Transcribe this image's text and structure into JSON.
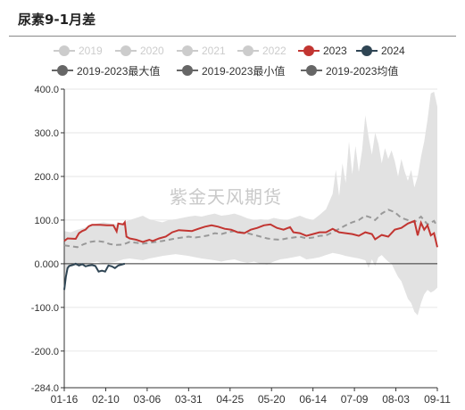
{
  "header": {
    "title": "尿素9-1月差"
  },
  "watermark": "紫金天风期货",
  "chart_data": {
    "type": "line",
    "title": "尿素9-1月差",
    "ylim": [
      -284,
      400
    ],
    "y_ticks": [
      "400.0",
      "300.0",
      "200.0",
      "100.0",
      "0.000",
      "-100.0",
      "-200.0",
      "-284.0"
    ],
    "x_ticks": [
      "01-16",
      "02-10",
      "03-06",
      "03-31",
      "04-25",
      "05-20",
      "06-14",
      "07-09",
      "08-03",
      "09-11"
    ],
    "grid": true,
    "legend_position": "top",
    "colors": {
      "inactive": "#cccccc",
      "s2023": "#c23531",
      "s2024": "#2f4554",
      "stat": "#666666",
      "band": "#e2e2e2",
      "avg_line": "#999999"
    },
    "legend": [
      {
        "name": "2019",
        "active": false,
        "color": "#cccccc"
      },
      {
        "name": "2020",
        "active": false,
        "color": "#cccccc"
      },
      {
        "name": "2021",
        "active": false,
        "color": "#cccccc"
      },
      {
        "name": "2022",
        "active": false,
        "color": "#cccccc"
      },
      {
        "name": "2023",
        "active": true,
        "color": "#c23531"
      },
      {
        "name": "2024",
        "active": true,
        "color": "#2f4554"
      },
      {
        "name": "2019-2023最大值",
        "active": true,
        "color": "#666666"
      },
      {
        "name": "2019-2023最小值",
        "active": true,
        "color": "#666666"
      },
      {
        "name": "2019-2023均值",
        "active": true,
        "color": "#666666"
      }
    ],
    "series_2023": [
      [
        0,
        52
      ],
      [
        2,
        58
      ],
      [
        7,
        57
      ],
      [
        9,
        70
      ],
      [
        11,
        75
      ],
      [
        13,
        78
      ],
      [
        15,
        86
      ],
      [
        17,
        89
      ],
      [
        22,
        89
      ],
      [
        26,
        88
      ],
      [
        30,
        88
      ],
      [
        32,
        74
      ],
      [
        33,
        92
      ],
      [
        36,
        90
      ],
      [
        37,
        95
      ],
      [
        38,
        62
      ],
      [
        40,
        58
      ],
      [
        44,
        55
      ],
      [
        48,
        50
      ],
      [
        52,
        55
      ],
      [
        54,
        52
      ],
      [
        58,
        58
      ],
      [
        62,
        62
      ],
      [
        66,
        72
      ],
      [
        70,
        77
      ],
      [
        74,
        76
      ],
      [
        78,
        75
      ],
      [
        82,
        80
      ],
      [
        86,
        85
      ],
      [
        90,
        88
      ],
      [
        94,
        85
      ],
      [
        98,
        80
      ],
      [
        102,
        78
      ],
      [
        106,
        72
      ],
      [
        110,
        70
      ],
      [
        114,
        78
      ],
      [
        118,
        82
      ],
      [
        122,
        88
      ],
      [
        126,
        90
      ],
      [
        130,
        82
      ],
      [
        134,
        78
      ],
      [
        138,
        84
      ],
      [
        140,
        72
      ],
      [
        144,
        70
      ],
      [
        148,
        64
      ],
      [
        152,
        68
      ],
      [
        156,
        72
      ],
      [
        160,
        72
      ],
      [
        164,
        80
      ],
      [
        168,
        72
      ],
      [
        172,
        70
      ],
      [
        176,
        68
      ],
      [
        180,
        64
      ],
      [
        184,
        72
      ],
      [
        188,
        68
      ],
      [
        190,
        56
      ],
      [
        194,
        66
      ],
      [
        198,
        62
      ],
      [
        202,
        78
      ],
      [
        206,
        82
      ],
      [
        210,
        92
      ],
      [
        214,
        98
      ],
      [
        216,
        65
      ],
      [
        218,
        94
      ],
      [
        220,
        78
      ],
      [
        222,
        88
      ],
      [
        224,
        65
      ],
      [
        226,
        70
      ],
      [
        228,
        38
      ]
    ],
    "series_2024": [
      [
        0,
        -60
      ],
      [
        1,
        -30
      ],
      [
        2,
        -10
      ],
      [
        3,
        -5
      ],
      [
        5,
        -3
      ],
      [
        7,
        0
      ],
      [
        9,
        -4
      ],
      [
        11,
        -1
      ],
      [
        13,
        -6
      ],
      [
        15,
        -4
      ],
      [
        17,
        -3
      ],
      [
        19,
        -5
      ],
      [
        21,
        -18
      ],
      [
        23,
        -16
      ],
      [
        25,
        -18
      ],
      [
        27,
        -4
      ],
      [
        29,
        -6
      ],
      [
        31,
        -10
      ],
      [
        33,
        -4
      ],
      [
        35,
        -2
      ],
      [
        37,
        0
      ]
    ],
    "avg_2019_2023": [
      [
        0,
        42
      ],
      [
        4,
        40
      ],
      [
        8,
        38
      ],
      [
        12,
        45
      ],
      [
        16,
        50
      ],
      [
        20,
        52
      ],
      [
        24,
        50
      ],
      [
        28,
        45
      ],
      [
        32,
        43
      ],
      [
        36,
        44
      ],
      [
        40,
        50
      ],
      [
        44,
        48
      ],
      [
        48,
        46
      ],
      [
        52,
        48
      ],
      [
        56,
        50
      ],
      [
        60,
        52
      ],
      [
        64,
        55
      ],
      [
        68,
        58
      ],
      [
        72,
        60
      ],
      [
        76,
        62
      ],
      [
        80,
        60
      ],
      [
        84,
        62
      ],
      [
        88,
        65
      ],
      [
        92,
        70
      ],
      [
        96,
        68
      ],
      [
        100,
        72
      ],
      [
        104,
        75
      ],
      [
        108,
        72
      ],
      [
        112,
        70
      ],
      [
        116,
        66
      ],
      [
        120,
        62
      ],
      [
        124,
        58
      ],
      [
        128,
        56
      ],
      [
        132,
        55
      ],
      [
        136,
        58
      ],
      [
        140,
        60
      ],
      [
        144,
        62
      ],
      [
        148,
        58
      ],
      [
        152,
        60
      ],
      [
        156,
        64
      ],
      [
        160,
        65
      ],
      [
        164,
        72
      ],
      [
        168,
        80
      ],
      [
        172,
        88
      ],
      [
        176,
        95
      ],
      [
        180,
        100
      ],
      [
        184,
        110
      ],
      [
        188,
        105
      ],
      [
        190,
        100
      ],
      [
        194,
        115
      ],
      [
        198,
        124
      ],
      [
        202,
        118
      ],
      [
        206,
        105
      ],
      [
        210,
        100
      ],
      [
        214,
        95
      ],
      [
        218,
        108
      ],
      [
        222,
        90
      ],
      [
        226,
        98
      ],
      [
        228,
        85
      ]
    ],
    "max_2019_2023": [
      [
        0,
        75
      ],
      [
        4,
        72
      ],
      [
        8,
        78
      ],
      [
        12,
        82
      ],
      [
        16,
        88
      ],
      [
        20,
        92
      ],
      [
        24,
        95
      ],
      [
        28,
        92
      ],
      [
        32,
        90
      ],
      [
        36,
        94
      ],
      [
        40,
        100
      ],
      [
        44,
        105
      ],
      [
        48,
        110
      ],
      [
        52,
        102
      ],
      [
        56,
        98
      ],
      [
        60,
        95
      ],
      [
        64,
        100
      ],
      [
        68,
        102
      ],
      [
        72,
        105
      ],
      [
        76,
        108
      ],
      [
        80,
        110
      ],
      [
        84,
        108
      ],
      [
        88,
        112
      ],
      [
        92,
        115
      ],
      [
        96,
        110
      ],
      [
        100,
        112
      ],
      [
        104,
        115
      ],
      [
        108,
        110
      ],
      [
        112,
        104
      ],
      [
        116,
        100
      ],
      [
        120,
        102
      ],
      [
        124,
        100
      ],
      [
        128,
        105
      ],
      [
        132,
        102
      ],
      [
        136,
        100
      ],
      [
        140,
        105
      ],
      [
        144,
        110
      ],
      [
        148,
        104
      ],
      [
        152,
        100
      ],
      [
        156,
        112
      ],
      [
        160,
        125
      ],
      [
        164,
        160
      ],
      [
        166,
        215
      ],
      [
        168,
        155
      ],
      [
        170,
        230
      ],
      [
        172,
        185
      ],
      [
        174,
        280
      ],
      [
        176,
        205
      ],
      [
        178,
        270
      ],
      [
        180,
        210
      ],
      [
        182,
        260
      ],
      [
        184,
        340
      ],
      [
        186,
        290
      ],
      [
        188,
        250
      ],
      [
        190,
        300
      ],
      [
        192,
        275
      ],
      [
        194,
        230
      ],
      [
        196,
        265
      ],
      [
        198,
        240
      ],
      [
        200,
        260
      ],
      [
        202,
        235
      ],
      [
        204,
        200
      ],
      [
        206,
        240
      ],
      [
        208,
        212
      ],
      [
        210,
        190
      ],
      [
        212,
        215
      ],
      [
        214,
        175
      ],
      [
        216,
        200
      ],
      [
        218,
        245
      ],
      [
        220,
        280
      ],
      [
        222,
        330
      ],
      [
        224,
        390
      ],
      [
        226,
        394
      ],
      [
        228,
        360
      ]
    ],
    "min_2019_2023": [
      [
        0,
        -50
      ],
      [
        2,
        -15
      ],
      [
        4,
        -5
      ],
      [
        8,
        -5
      ],
      [
        12,
        0
      ],
      [
        16,
        2
      ],
      [
        20,
        5
      ],
      [
        24,
        0
      ],
      [
        28,
        2
      ],
      [
        32,
        5
      ],
      [
        36,
        10
      ],
      [
        40,
        12
      ],
      [
        44,
        10
      ],
      [
        48,
        8
      ],
      [
        52,
        12
      ],
      [
        56,
        15
      ],
      [
        60,
        18
      ],
      [
        64,
        20
      ],
      [
        68,
        22
      ],
      [
        72,
        20
      ],
      [
        76,
        18
      ],
      [
        80,
        15
      ],
      [
        84,
        12
      ],
      [
        88,
        10
      ],
      [
        92,
        8
      ],
      [
        96,
        5
      ],
      [
        100,
        8
      ],
      [
        104,
        10
      ],
      [
        108,
        5
      ],
      [
        112,
        2
      ],
      [
        116,
        5
      ],
      [
        120,
        0
      ],
      [
        124,
        -2
      ],
      [
        128,
        5
      ],
      [
        132,
        10
      ],
      [
        136,
        12
      ],
      [
        140,
        15
      ],
      [
        144,
        18
      ],
      [
        148,
        10
      ],
      [
        152,
        12
      ],
      [
        156,
        15
      ],
      [
        160,
        20
      ],
      [
        164,
        25
      ],
      [
        168,
        22
      ],
      [
        172,
        18
      ],
      [
        176,
        15
      ],
      [
        180,
        12
      ],
      [
        184,
        8
      ],
      [
        186,
        -10
      ],
      [
        188,
        10
      ],
      [
        190,
        -5
      ],
      [
        192,
        15
      ],
      [
        194,
        20
      ],
      [
        196,
        12
      ],
      [
        198,
        5
      ],
      [
        200,
        0
      ],
      [
        202,
        -15
      ],
      [
        204,
        -30
      ],
      [
        206,
        -40
      ],
      [
        208,
        -60
      ],
      [
        210,
        -80
      ],
      [
        212,
        -90
      ],
      [
        214,
        -110
      ],
      [
        216,
        -118
      ],
      [
        218,
        -90
      ],
      [
        220,
        -70
      ],
      [
        222,
        -60
      ],
      [
        224,
        -66
      ],
      [
        226,
        -62
      ],
      [
        228,
        -55
      ]
    ]
  }
}
